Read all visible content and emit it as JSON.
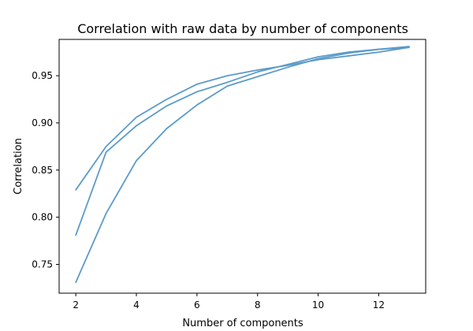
{
  "chart_data": {
    "type": "line",
    "title": "Correlation with raw data by number of components",
    "xlabel": "Number of components",
    "ylabel": "Correlation",
    "xlim": [
      1.45,
      13.55
    ],
    "ylim": [
      0.7195,
      0.9885
    ],
    "xticks": [
      2,
      4,
      6,
      8,
      10,
      12
    ],
    "yticks": [
      0.75,
      0.8,
      0.85,
      0.9,
      0.95
    ],
    "ytick_labels": [
      "0.75",
      "0.80",
      "0.85",
      "0.90",
      "0.95"
    ],
    "grid": false,
    "line_color": "#5b9bc8",
    "x": [
      2,
      3,
      4,
      5,
      6,
      7,
      8,
      9,
      10,
      11,
      12,
      13
    ],
    "series": [
      {
        "values": [
          0.829,
          0.875,
          0.906,
          0.925,
          0.941,
          0.95,
          0.956,
          0.961,
          0.967,
          0.971,
          0.975,
          0.98
        ]
      },
      {
        "values": [
          0.781,
          0.869,
          0.897,
          0.918,
          0.933,
          0.943,
          0.954,
          0.962,
          0.97,
          0.975,
          0.978,
          0.981
        ]
      },
      {
        "values": [
          0.731,
          0.804,
          0.86,
          0.894,
          0.919,
          0.939,
          0.949,
          0.959,
          0.968,
          0.974,
          0.978,
          0.98
        ]
      }
    ]
  }
}
